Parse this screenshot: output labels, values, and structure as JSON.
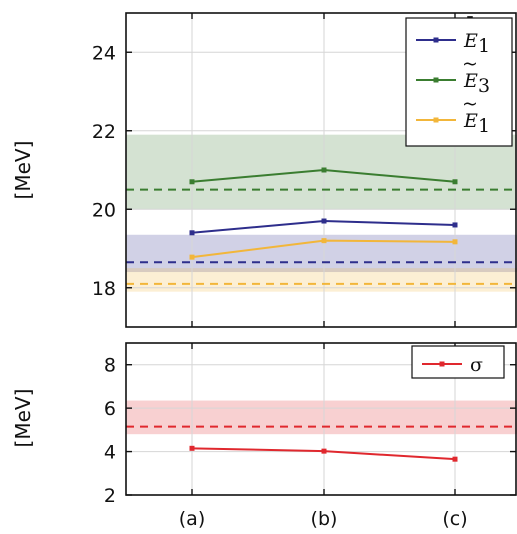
{
  "chart_data": [
    {
      "type": "line",
      "panel": "top",
      "ylabel": "[MeV]",
      "categories": [
        "(a)",
        "(b)",
        "(c)"
      ],
      "ylim": [
        17,
        25
      ],
      "yticks": [
        18,
        20,
        22,
        24
      ],
      "grid": true,
      "legend_position": "top-right",
      "series": [
        {
          "name": "Ē₁",
          "label_base": "E",
          "label_accent": "¯",
          "label_sub": "1",
          "color": "#2e2e8c",
          "values": [
            19.4,
            19.7,
            19.6
          ],
          "reference_line": 18.65,
          "band": [
            18.4,
            19.35
          ]
        },
        {
          "name": "Ẽ₃",
          "label_base": "E",
          "label_accent": "~",
          "label_sub": "3",
          "color": "#3a7d30",
          "values": [
            20.7,
            21.0,
            20.7
          ],
          "reference_line": 20.5,
          "band": [
            20.0,
            21.9
          ]
        },
        {
          "name": "Ẽ₁",
          "label_base": "E",
          "label_accent": "~",
          "label_sub": "1",
          "color": "#f2b63a",
          "values": [
            18.78,
            19.2,
            19.17
          ],
          "reference_line": 18.1,
          "band": [
            17.9,
            18.5
          ]
        }
      ]
    },
    {
      "type": "line",
      "panel": "bottom",
      "ylabel": "[MeV]",
      "categories": [
        "(a)",
        "(b)",
        "(c)"
      ],
      "ylim": [
        2,
        9
      ],
      "yticks": [
        2,
        4,
        6,
        8
      ],
      "grid": true,
      "legend_position": "top-right",
      "series": [
        {
          "name": "σ",
          "label_base": "σ",
          "label_accent": "",
          "label_sub": "",
          "color": "#e0282e",
          "values": [
            4.15,
            4.02,
            3.65
          ],
          "reference_line": 5.15,
          "band": [
            4.8,
            6.35
          ]
        }
      ]
    }
  ]
}
